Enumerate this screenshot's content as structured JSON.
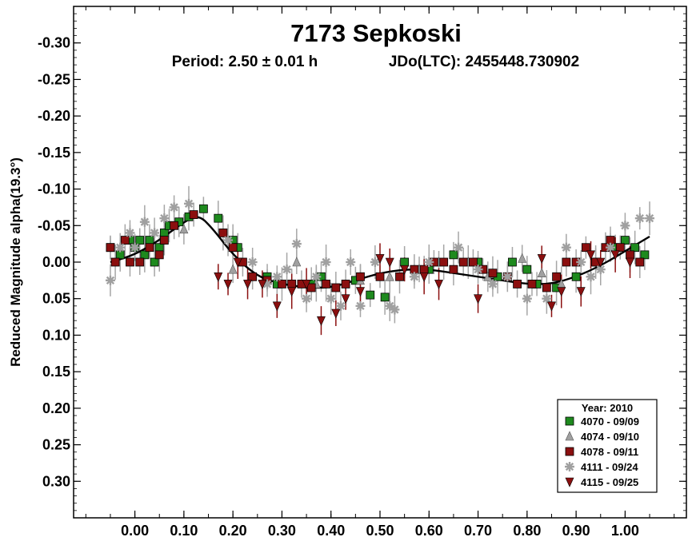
{
  "chart_data": {
    "type": "scatter",
    "title": "7173 Sepkoski",
    "subtitle_period": "Period: 2.50 ± 0.01 h",
    "subtitle_epoch": "JDo(LTC): 2455448.730902",
    "xlabel": "",
    "ylabel": "Reduced Magnitude alpha(19.3°)",
    "xlim": [
      -0.125,
      1.125
    ],
    "ylim": [
      -0.35,
      0.35
    ],
    "y_inverted": true,
    "x_ticks": [
      "0.00",
      "0.10",
      "0.20",
      "0.30",
      "0.40",
      "0.50",
      "0.60",
      "0.70",
      "0.80",
      "0.90",
      "1.00"
    ],
    "y_ticks": [
      "-0.30",
      "-0.25",
      "-0.20",
      "-0.15",
      "-0.10",
      "-0.05",
      "0.00",
      "0.05",
      "0.10",
      "0.15",
      "0.20",
      "0.25",
      "0.30"
    ],
    "grid": false,
    "legend": {
      "title": "Year: 2010",
      "placement": "bottom-right"
    },
    "fit_curve": {
      "color": "#000000",
      "points": [
        [
          -0.05,
          0.0
        ],
        [
          0.0,
          -0.01
        ],
        [
          0.05,
          -0.03
        ],
        [
          0.1,
          -0.055
        ],
        [
          0.13,
          -0.065
        ],
        [
          0.16,
          -0.045
        ],
        [
          0.2,
          -0.01
        ],
        [
          0.25,
          0.02
        ],
        [
          0.3,
          0.03
        ],
        [
          0.35,
          0.035
        ],
        [
          0.4,
          0.035
        ],
        [
          0.45,
          0.025
        ],
        [
          0.5,
          0.015
        ],
        [
          0.55,
          0.01
        ],
        [
          0.6,
          0.01
        ],
        [
          0.65,
          0.015
        ],
        [
          0.7,
          0.02
        ],
        [
          0.75,
          0.025
        ],
        [
          0.8,
          0.03
        ],
        [
          0.85,
          0.03
        ],
        [
          0.9,
          0.02
        ],
        [
          0.95,
          0.005
        ],
        [
          1.0,
          -0.015
        ],
        [
          1.05,
          -0.035
        ]
      ]
    },
    "series": [
      {
        "name": "4070 - 09/09",
        "marker": "square",
        "color": "#1e8a1e",
        "points": [
          [
            -0.05,
            -0.02
          ],
          [
            -0.03,
            -0.01
          ],
          [
            -0.01,
            -0.03
          ],
          [
            0.0,
            -0.02
          ],
          [
            0.01,
            -0.03
          ],
          [
            0.02,
            -0.01
          ],
          [
            0.03,
            -0.03
          ],
          [
            0.04,
            0.0
          ],
          [
            0.05,
            -0.02
          ],
          [
            0.06,
            -0.04
          ],
          [
            0.07,
            -0.05
          ],
          [
            0.09,
            -0.055
          ],
          [
            0.11,
            -0.062
          ],
          [
            0.14,
            -0.073
          ],
          [
            0.17,
            -0.06
          ],
          [
            0.2,
            -0.03
          ],
          [
            0.21,
            -0.02
          ],
          [
            0.27,
            0.02
          ],
          [
            0.29,
            0.03
          ],
          [
            0.36,
            0.03
          ],
          [
            0.38,
            0.02
          ],
          [
            0.45,
            0.025
          ],
          [
            0.48,
            0.045
          ],
          [
            0.51,
            0.048
          ],
          [
            0.55,
            0.0
          ],
          [
            0.6,
            0.01
          ],
          [
            0.65,
            -0.01
          ],
          [
            0.7,
            0.0
          ],
          [
            0.74,
            0.02
          ],
          [
            0.77,
            0.0
          ],
          [
            0.8,
            0.01
          ],
          [
            0.82,
            0.03
          ],
          [
            0.86,
            0.035
          ],
          [
            0.9,
            0.02
          ],
          [
            0.94,
            0.0
          ],
          [
            0.98,
            -0.02
          ],
          [
            1.0,
            -0.03
          ],
          [
            1.02,
            -0.02
          ],
          [
            1.04,
            -0.01
          ]
        ]
      },
      {
        "name": "4074 - 09/10",
        "marker": "triangle-up",
        "color": "#a0a0a0",
        "points": [
          [
            0.1,
            -0.045
          ],
          [
            0.2,
            0.01
          ],
          [
            0.33,
            0.0
          ],
          [
            0.37,
            0.03
          ],
          [
            0.46,
            0.025
          ],
          [
            0.52,
            0.02
          ],
          [
            0.58,
            0.01
          ],
          [
            0.62,
            0.0
          ],
          [
            0.68,
            0.0
          ],
          [
            0.72,
            0.02
          ],
          [
            0.79,
            -0.005
          ],
          [
            0.83,
            0.015
          ],
          [
            0.87,
            0.03
          ]
        ]
      },
      {
        "name": "4078 - 09/11",
        "marker": "square",
        "color": "#8b0f0f",
        "points": [
          [
            -0.05,
            -0.02
          ],
          [
            -0.04,
            0.0
          ],
          [
            -0.02,
            -0.03
          ],
          [
            -0.01,
            0.0
          ],
          [
            0.01,
            0.0
          ],
          [
            0.03,
            -0.02
          ],
          [
            0.05,
            -0.01
          ],
          [
            0.06,
            -0.03
          ],
          [
            0.08,
            -0.05
          ],
          [
            0.12,
            -0.065
          ],
          [
            0.18,
            -0.04
          ],
          [
            0.2,
            -0.02
          ],
          [
            0.22,
            0.0
          ],
          [
            0.24,
            0.02
          ],
          [
            0.27,
            0.025
          ],
          [
            0.3,
            0.03
          ],
          [
            0.32,
            0.03
          ],
          [
            0.34,
            0.03
          ],
          [
            0.36,
            0.035
          ],
          [
            0.39,
            0.03
          ],
          [
            0.41,
            0.035
          ],
          [
            0.43,
            0.03
          ],
          [
            0.46,
            0.02
          ],
          [
            0.5,
            0.02
          ],
          [
            0.54,
            0.02
          ],
          [
            0.57,
            0.01
          ],
          [
            0.59,
            0.01
          ],
          [
            0.61,
            0.0
          ],
          [
            0.63,
            0.0
          ],
          [
            0.65,
            0.01
          ],
          [
            0.67,
            0.0
          ],
          [
            0.69,
            0.0
          ],
          [
            0.71,
            0.01
          ],
          [
            0.73,
            0.015
          ],
          [
            0.76,
            0.02
          ],
          [
            0.78,
            0.03
          ],
          [
            0.81,
            0.03
          ],
          [
            0.84,
            0.035
          ],
          [
            0.86,
            0.02
          ],
          [
            0.88,
            0.0
          ],
          [
            0.9,
            0.0
          ],
          [
            0.92,
            -0.02
          ],
          [
            0.94,
            0.0
          ],
          [
            0.96,
            -0.02
          ],
          [
            0.97,
            -0.03
          ],
          [
            0.99,
            -0.02
          ],
          [
            1.01,
            -0.01
          ],
          [
            1.03,
            0.0
          ]
        ]
      },
      {
        "name": "4111 - 09/24",
        "marker": "asterisk",
        "color": "#a0a0a0",
        "points": [
          [
            -0.05,
            0.025
          ],
          [
            -0.03,
            -0.02
          ],
          [
            -0.01,
            -0.04
          ],
          [
            0.0,
            -0.02
          ],
          [
            0.02,
            -0.055
          ],
          [
            0.04,
            -0.04
          ],
          [
            0.06,
            -0.06
          ],
          [
            0.08,
            -0.075
          ],
          [
            0.11,
            -0.08
          ],
          [
            0.19,
            -0.03
          ],
          [
            0.24,
            0.0
          ],
          [
            0.27,
            0.03
          ],
          [
            0.29,
            0.02
          ],
          [
            0.31,
            0.01
          ],
          [
            0.33,
            -0.025
          ],
          [
            0.35,
            0.05
          ],
          [
            0.37,
            0.02
          ],
          [
            0.39,
            0.0
          ],
          [
            0.4,
            0.05
          ],
          [
            0.42,
            0.06
          ],
          [
            0.44,
            0.0
          ],
          [
            0.46,
            0.06
          ],
          [
            0.49,
            0.0
          ],
          [
            0.52,
            0.06
          ],
          [
            0.53,
            0.065
          ],
          [
            0.57,
            0.02
          ],
          [
            0.6,
            0.0
          ],
          [
            0.66,
            -0.02
          ],
          [
            0.7,
            0.01
          ],
          [
            0.73,
            0.03
          ],
          [
            0.76,
            0.02
          ],
          [
            0.8,
            0.05
          ],
          [
            0.84,
            0.05
          ],
          [
            0.88,
            -0.02
          ],
          [
            0.91,
            0.0
          ],
          [
            0.93,
            0.02
          ],
          [
            0.95,
            0.01
          ],
          [
            0.97,
            -0.02
          ],
          [
            1.0,
            -0.05
          ],
          [
            1.03,
            -0.06
          ],
          [
            1.05,
            -0.06
          ]
        ]
      },
      {
        "name": "4115 - 09/25",
        "marker": "triangle-down",
        "color": "#8b0f0f",
        "points": [
          [
            0.17,
            0.02
          ],
          [
            0.19,
            0.03
          ],
          [
            0.21,
            0.0
          ],
          [
            0.23,
            0.03
          ],
          [
            0.26,
            0.03
          ],
          [
            0.29,
            0.06
          ],
          [
            0.32,
            0.04
          ],
          [
            0.35,
            0.03
          ],
          [
            0.38,
            0.08
          ],
          [
            0.41,
            0.07
          ],
          [
            0.43,
            0.05
          ],
          [
            0.46,
            0.04
          ],
          [
            0.5,
            -0.005
          ],
          [
            0.52,
            0.0
          ],
          [
            0.55,
            0.01
          ],
          [
            0.59,
            0.02
          ],
          [
            0.62,
            0.03
          ],
          [
            0.7,
            0.05
          ],
          [
            0.83,
            -0.005
          ],
          [
            0.85,
            0.06
          ],
          [
            0.87,
            0.04
          ],
          [
            0.91,
            0.04
          ],
          [
            0.93,
            -0.01
          ],
          [
            0.95,
            0.0
          ],
          [
            0.98,
            -0.01
          ],
          [
            1.01,
            0.0
          ]
        ]
      }
    ]
  }
}
